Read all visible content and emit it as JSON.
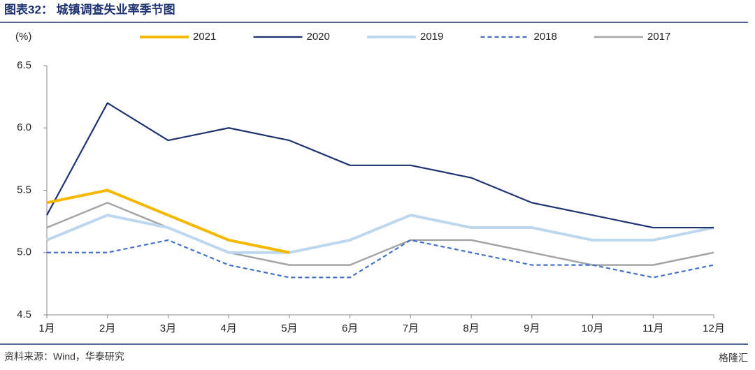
{
  "header": {
    "title": "图表32：  城镇调查失业率季节图"
  },
  "chart_data": {
    "type": "line",
    "y_label": "(%)",
    "categories": [
      "1月",
      "2月",
      "3月",
      "4月",
      "5月",
      "6月",
      "7月",
      "8月",
      "9月",
      "10月",
      "11月",
      "12月"
    ],
    "ylim": [
      4.5,
      6.5
    ],
    "yticks": [
      4.5,
      {
        "value": 5,
        "label": "5.0"
      },
      5.5,
      {
        "value": 6,
        "label": "6.0"
      },
      6.5
    ],
    "grid": false,
    "legend": "top",
    "series": [
      {
        "name": "2021",
        "color": "#f5b800",
        "line_width": 4,
        "dashed": false,
        "values": [
          5.4,
          5.5,
          5.3,
          5.1,
          5.0,
          null,
          null,
          null,
          null,
          null,
          null,
          null
        ]
      },
      {
        "name": "2020",
        "color": "#1f3370",
        "line_width": 2.2,
        "dashed": false,
        "values": [
          5.3,
          6.2,
          5.9,
          6.0,
          5.9,
          5.7,
          5.7,
          5.6,
          5.4,
          5.3,
          5.2,
          5.2
        ]
      },
      {
        "name": "2019",
        "color": "#bdd7ee",
        "line_width": 4,
        "dashed": false,
        "values": [
          5.1,
          5.3,
          5.2,
          5.0,
          5.0,
          5.1,
          5.3,
          5.2,
          5.2,
          5.1,
          5.1,
          5.2
        ]
      },
      {
        "name": "2018",
        "color": "#4472c4",
        "line_width": 2.2,
        "dashed": true,
        "values": [
          5.0,
          5.0,
          5.1,
          4.9,
          4.8,
          4.8,
          5.1,
          5.0,
          4.9,
          4.9,
          4.8,
          4.9
        ]
      },
      {
        "name": "2017",
        "color": "#a5a5a5",
        "line_width": 2.5,
        "dashed": false,
        "values": [
          5.2,
          5.4,
          5.2,
          5.0,
          4.9,
          4.9,
          5.1,
          5.1,
          5.0,
          4.9,
          4.9,
          5.0
        ]
      }
    ]
  },
  "footer": {
    "source": "资料来源：Wind，华泰研究",
    "watermark": "格隆汇"
  }
}
